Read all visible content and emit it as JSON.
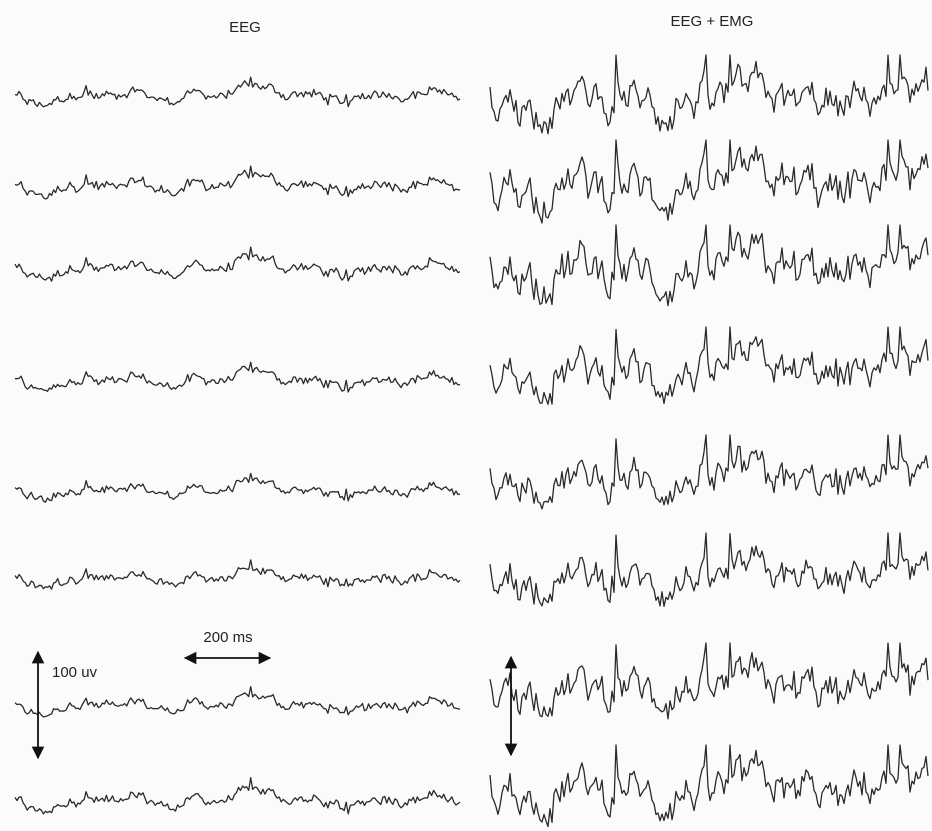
{
  "titles": {
    "left": "EEG",
    "right": "EEG + EMG"
  },
  "scale_bars": {
    "time": "200 ms",
    "amplitude": "100 uv"
  }
}
